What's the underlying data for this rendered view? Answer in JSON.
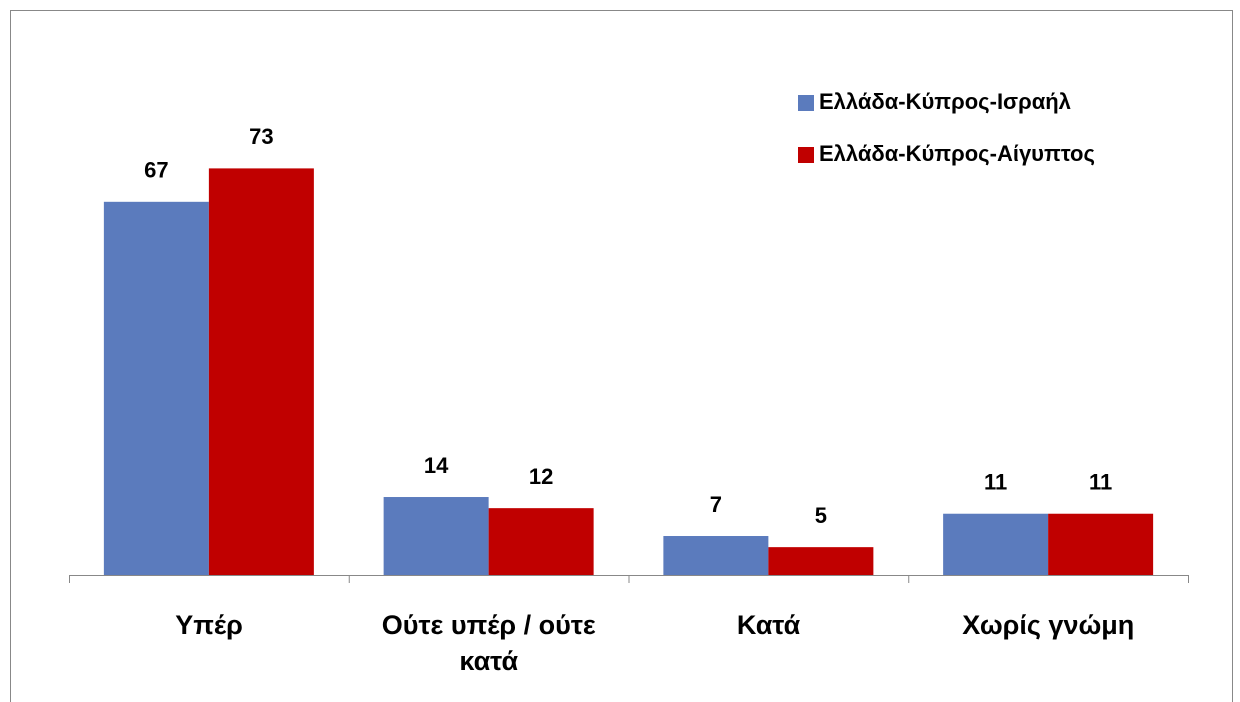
{
  "chart_data": {
    "type": "bar",
    "categories": [
      "Υπέρ",
      "Ούτε υπέρ / ούτε κατά",
      "Κατά",
      "Χωρίς γνώμη"
    ],
    "series": [
      {
        "name": "Ελλάδα-Κύπρος-Ισραήλ",
        "color": "#5b7bbd",
        "values": [
          67,
          14,
          7,
          11
        ]
      },
      {
        "name": "Ελλάδα-Κύπρος-Αίγυπτος",
        "color": "#c00000",
        "values": [
          73,
          12,
          5,
          11
        ]
      }
    ],
    "ylim": [
      0,
      100
    ],
    "legend": "top-right"
  }
}
